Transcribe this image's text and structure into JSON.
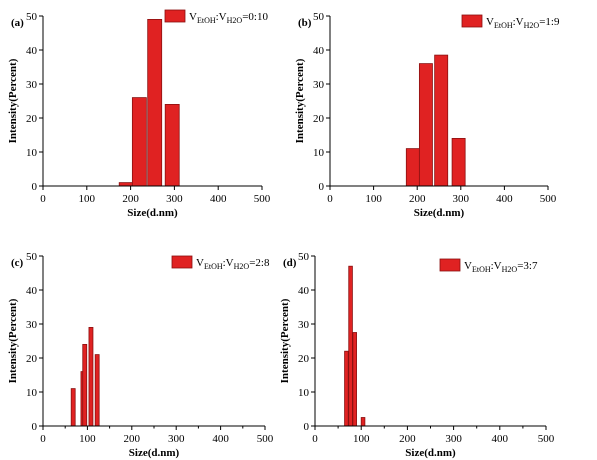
{
  "chart_data": [
    {
      "type": "bar",
      "panel_label": "(a)",
      "legend": {
        "prefix": "V",
        "sub1": "EtOH",
        "sep": ":V",
        "sub2": "H2O",
        "ratio": "=0:10"
      },
      "xlabel": "Size(d.nm)",
      "ylabel": "Intensity(Percent)",
      "xlim": [
        0,
        500
      ],
      "ylim": [
        0,
        50
      ],
      "xticks": [
        0,
        100,
        200,
        300,
        400,
        500
      ],
      "yticks": [
        0,
        10,
        20,
        30,
        40,
        50
      ],
      "bar_width": 32,
      "x": [
        190,
        220,
        255,
        295
      ],
      "values": [
        1,
        26,
        49,
        24
      ]
    },
    {
      "type": "bar",
      "panel_label": "(b)",
      "legend": {
        "prefix": "V",
        "sub1": "EtOH",
        "sep": ":V",
        "sub2": "H2O",
        "ratio": "=1:9"
      },
      "xlabel": "Size(d.nm)",
      "ylabel": "Intensity(Percent)",
      "xlim": [
        0,
        500
      ],
      "ylim": [
        0,
        50
      ],
      "xticks": [
        0,
        100,
        200,
        300,
        400,
        500
      ],
      "yticks": [
        0,
        10,
        20,
        30,
        40,
        50
      ],
      "bar_width": 30,
      "x": [
        190,
        220,
        255,
        295
      ],
      "values": [
        11,
        36,
        38.5,
        14
      ]
    },
    {
      "type": "bar",
      "panel_label": "(c)",
      "legend": {
        "prefix": "V",
        "sub1": "EtOH",
        "sep": ":V",
        "sub2": "H2O",
        "ratio": "=2:8"
      },
      "xlabel": "Size(d.nm)",
      "ylabel": "Intensity(Percent)",
      "xlim": [
        0,
        500
      ],
      "ylim": [
        0,
        50
      ],
      "xticks": [
        0,
        50,
        100,
        150,
        200,
        250,
        300,
        350,
        400,
        450,
        500
      ],
      "yticks": [
        0,
        10,
        20,
        30,
        40,
        50
      ],
      "bar_width": 9,
      "x": [
        68,
        90,
        94,
        108,
        122
      ],
      "values": [
        11,
        16,
        24,
        29,
        21
      ]
    },
    {
      "type": "bar",
      "panel_label": "(d)",
      "legend": {
        "prefix": "V",
        "sub1": "EtOH",
        "sep": ":V",
        "sub2": "H2O",
        "ratio": "=3:7"
      },
      "xlabel": "Size(d.nm)",
      "ylabel": "Intensity(Percent)",
      "xlim": [
        0,
        500
      ],
      "ylim": [
        0,
        50
      ],
      "xticks": [
        0,
        50,
        100,
        150,
        200,
        250,
        300,
        350,
        400,
        450,
        500
      ],
      "yticks": [
        0,
        10,
        20,
        30,
        40,
        50
      ],
      "bar_width": 8,
      "x": [
        68,
        77,
        86,
        104
      ],
      "values": [
        22,
        47,
        27.5,
        2.5
      ]
    }
  ],
  "colors": {
    "bar_fill": "#e02222",
    "bar_stroke": "#8a1010",
    "axis": "#000000"
  }
}
